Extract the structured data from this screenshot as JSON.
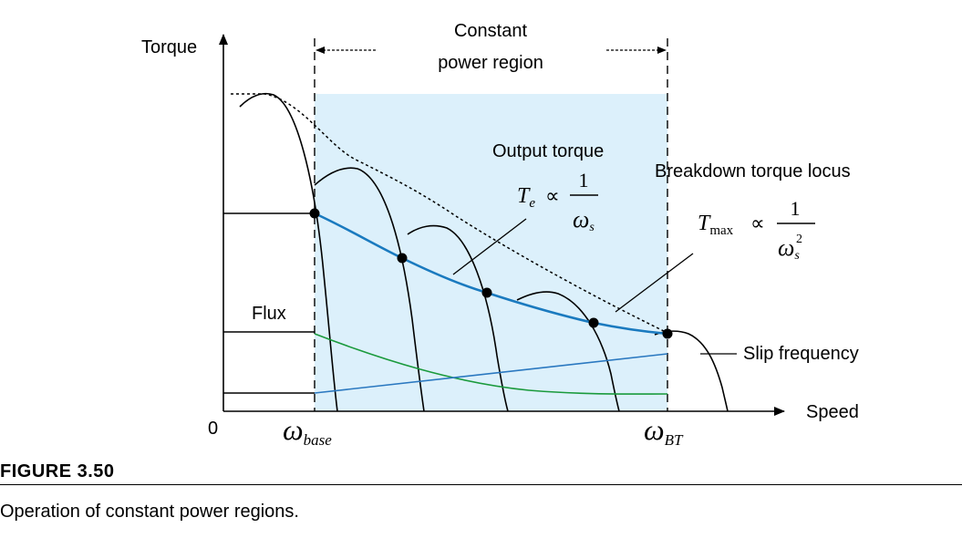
{
  "figure": {
    "axis_y_label": "Torque",
    "axis_x_label": "Speed",
    "origin_label": "0",
    "region_label_line1": "Constant",
    "region_label_line2": "power region",
    "flux_label": "Flux",
    "slip_label": "Slip frequency",
    "output_torque_label": "Output torque",
    "breakdown_label": "Breakdown torque locus",
    "omega_base_symbol": "ω",
    "omega_base_sub": "base",
    "omega_bt_symbol": "ω",
    "omega_bt_sub": "BT",
    "te_formula": {
      "T": "T",
      "sub": "e",
      "prop": "∝",
      "num": "1",
      "den": "ω",
      "den_sub": "s"
    },
    "tmax_formula": {
      "T": "T",
      "sub": "max",
      "prop": "∝",
      "num": "1",
      "den": "ω",
      "den_sub": "s",
      "den_sup": "2"
    }
  },
  "caption": {
    "label": "FIGURE 3.50",
    "text": "Operation of constant power regions."
  },
  "colors": {
    "region_fill": "#dcf0fb",
    "output_torque_curve": "#1a7abf",
    "flux_curve": "#1a9a3c",
    "slip_curve": "#2a78c0"
  }
}
